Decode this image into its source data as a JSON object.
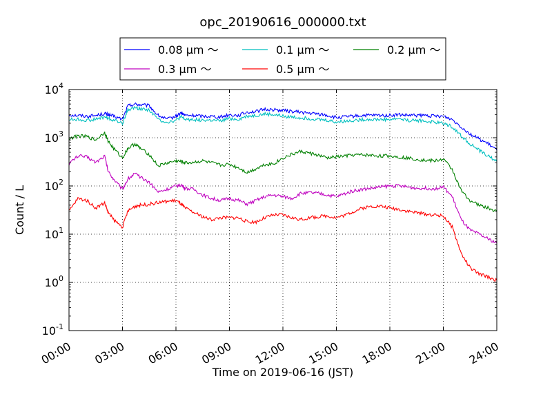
{
  "chart_data": {
    "type": "line",
    "title": "opc_20190616_000000.txt",
    "xlabel": "Time on 2019-06-16 (JST)",
    "ylabel": "Count / L",
    "yscale": "log",
    "xlim": [
      "00:00",
      "24:00"
    ],
    "ylim": [
      0.1,
      10000
    ],
    "x_ticks": [
      "00:00",
      "03:00",
      "06:00",
      "09:00",
      "12:00",
      "15:00",
      "18:00",
      "21:00",
      "24:00"
    ],
    "y_ticks": [
      {
        "base": "10",
        "exp": "-1"
      },
      {
        "base": "10",
        "exp": "0"
      },
      {
        "base": "10",
        "exp": "1"
      },
      {
        "base": "10",
        "exp": "2"
      },
      {
        "base": "10",
        "exp": "3"
      },
      {
        "base": "10",
        "exp": "4"
      }
    ],
    "grid": true,
    "legend_position": "top-center",
    "x_hours": [
      0,
      0.5,
      1,
      1.5,
      2,
      2.2,
      2.5,
      3,
      3.3,
      3.7,
      4,
      4.5,
      5,
      5.5,
      6,
      6.3,
      6.5,
      7,
      7.5,
      8,
      8.5,
      9,
      9.5,
      10,
      10.5,
      11,
      11.5,
      12,
      12.5,
      13,
      13.5,
      14,
      14.5,
      15,
      15.5,
      16,
      16.5,
      17,
      17.5,
      18,
      18.5,
      19,
      19.5,
      20,
      20.5,
      21,
      21.5,
      22,
      22.5,
      23,
      23.5,
      24
    ],
    "series": [
      {
        "name": "0.08 μm ～",
        "color": "#0000ff",
        "values": [
          3000,
          2900,
          2800,
          2900,
          3200,
          3000,
          2800,
          2400,
          4600,
          5000,
          4800,
          4600,
          2900,
          2400,
          2800,
          3300,
          2900,
          2900,
          2800,
          2800,
          2700,
          3000,
          2900,
          3400,
          3500,
          3900,
          3800,
          3700,
          3500,
          3400,
          3200,
          3100,
          2900,
          2600,
          2700,
          2800,
          2900,
          2900,
          2900,
          2900,
          3000,
          2900,
          2900,
          2900,
          2800,
          2800,
          2400,
          1700,
          1200,
          950,
          750,
          550
        ]
      },
      {
        "name": "0.1 μm ～",
        "color": "#00bfbf",
        "values": [
          2400,
          2400,
          2300,
          2400,
          2700,
          2500,
          2300,
          2000,
          3800,
          4200,
          4000,
          3800,
          2400,
          2100,
          2300,
          2700,
          2400,
          2400,
          2300,
          2300,
          2200,
          2500,
          2400,
          2800,
          2900,
          3100,
          3000,
          2800,
          2700,
          2600,
          2500,
          2400,
          2300,
          2100,
          2200,
          2300,
          2400,
          2400,
          2400,
          2400,
          2500,
          2300,
          2300,
          2200,
          2100,
          2000,
          1700,
          1100,
          750,
          550,
          420,
          320
        ]
      },
      {
        "name": "0.2 μm ～",
        "color": "#008000",
        "values": [
          950,
          1100,
          1050,
          900,
          1300,
          850,
          600,
          380,
          600,
          750,
          600,
          450,
          260,
          300,
          330,
          320,
          300,
          310,
          330,
          300,
          270,
          280,
          240,
          190,
          230,
          280,
          290,
          380,
          450,
          520,
          480,
          430,
          380,
          400,
          420,
          440,
          440,
          430,
          420,
          420,
          400,
          380,
          360,
          340,
          330,
          360,
          220,
          80,
          50,
          40,
          35,
          29
        ]
      },
      {
        "name": "0.3 μm ～",
        "color": "#bf00bf",
        "values": [
          290,
          420,
          400,
          310,
          420,
          200,
          140,
          85,
          140,
          180,
          150,
          120,
          75,
          85,
          100,
          105,
          90,
          85,
          65,
          55,
          50,
          55,
          50,
          42,
          50,
          60,
          65,
          60,
          55,
          70,
          72,
          70,
          65,
          60,
          70,
          80,
          85,
          90,
          95,
          100,
          100,
          95,
          90,
          90,
          88,
          95,
          60,
          20,
          12,
          10,
          8,
          6.5
        ]
      },
      {
        "name": "0.5 μm ～",
        "color": "#ff0000",
        "values": [
          30,
          55,
          50,
          35,
          45,
          28,
          20,
          14,
          30,
          38,
          40,
          42,
          45,
          48,
          50,
          42,
          35,
          28,
          23,
          20,
          22,
          22,
          22,
          18,
          18,
          22,
          25,
          25,
          22,
          20,
          22,
          23,
          24,
          22,
          25,
          30,
          35,
          38,
          38,
          35,
          33,
          30,
          28,
          26,
          25,
          24,
          14,
          4,
          2,
          1.5,
          1.3,
          1.1
        ]
      }
    ]
  }
}
